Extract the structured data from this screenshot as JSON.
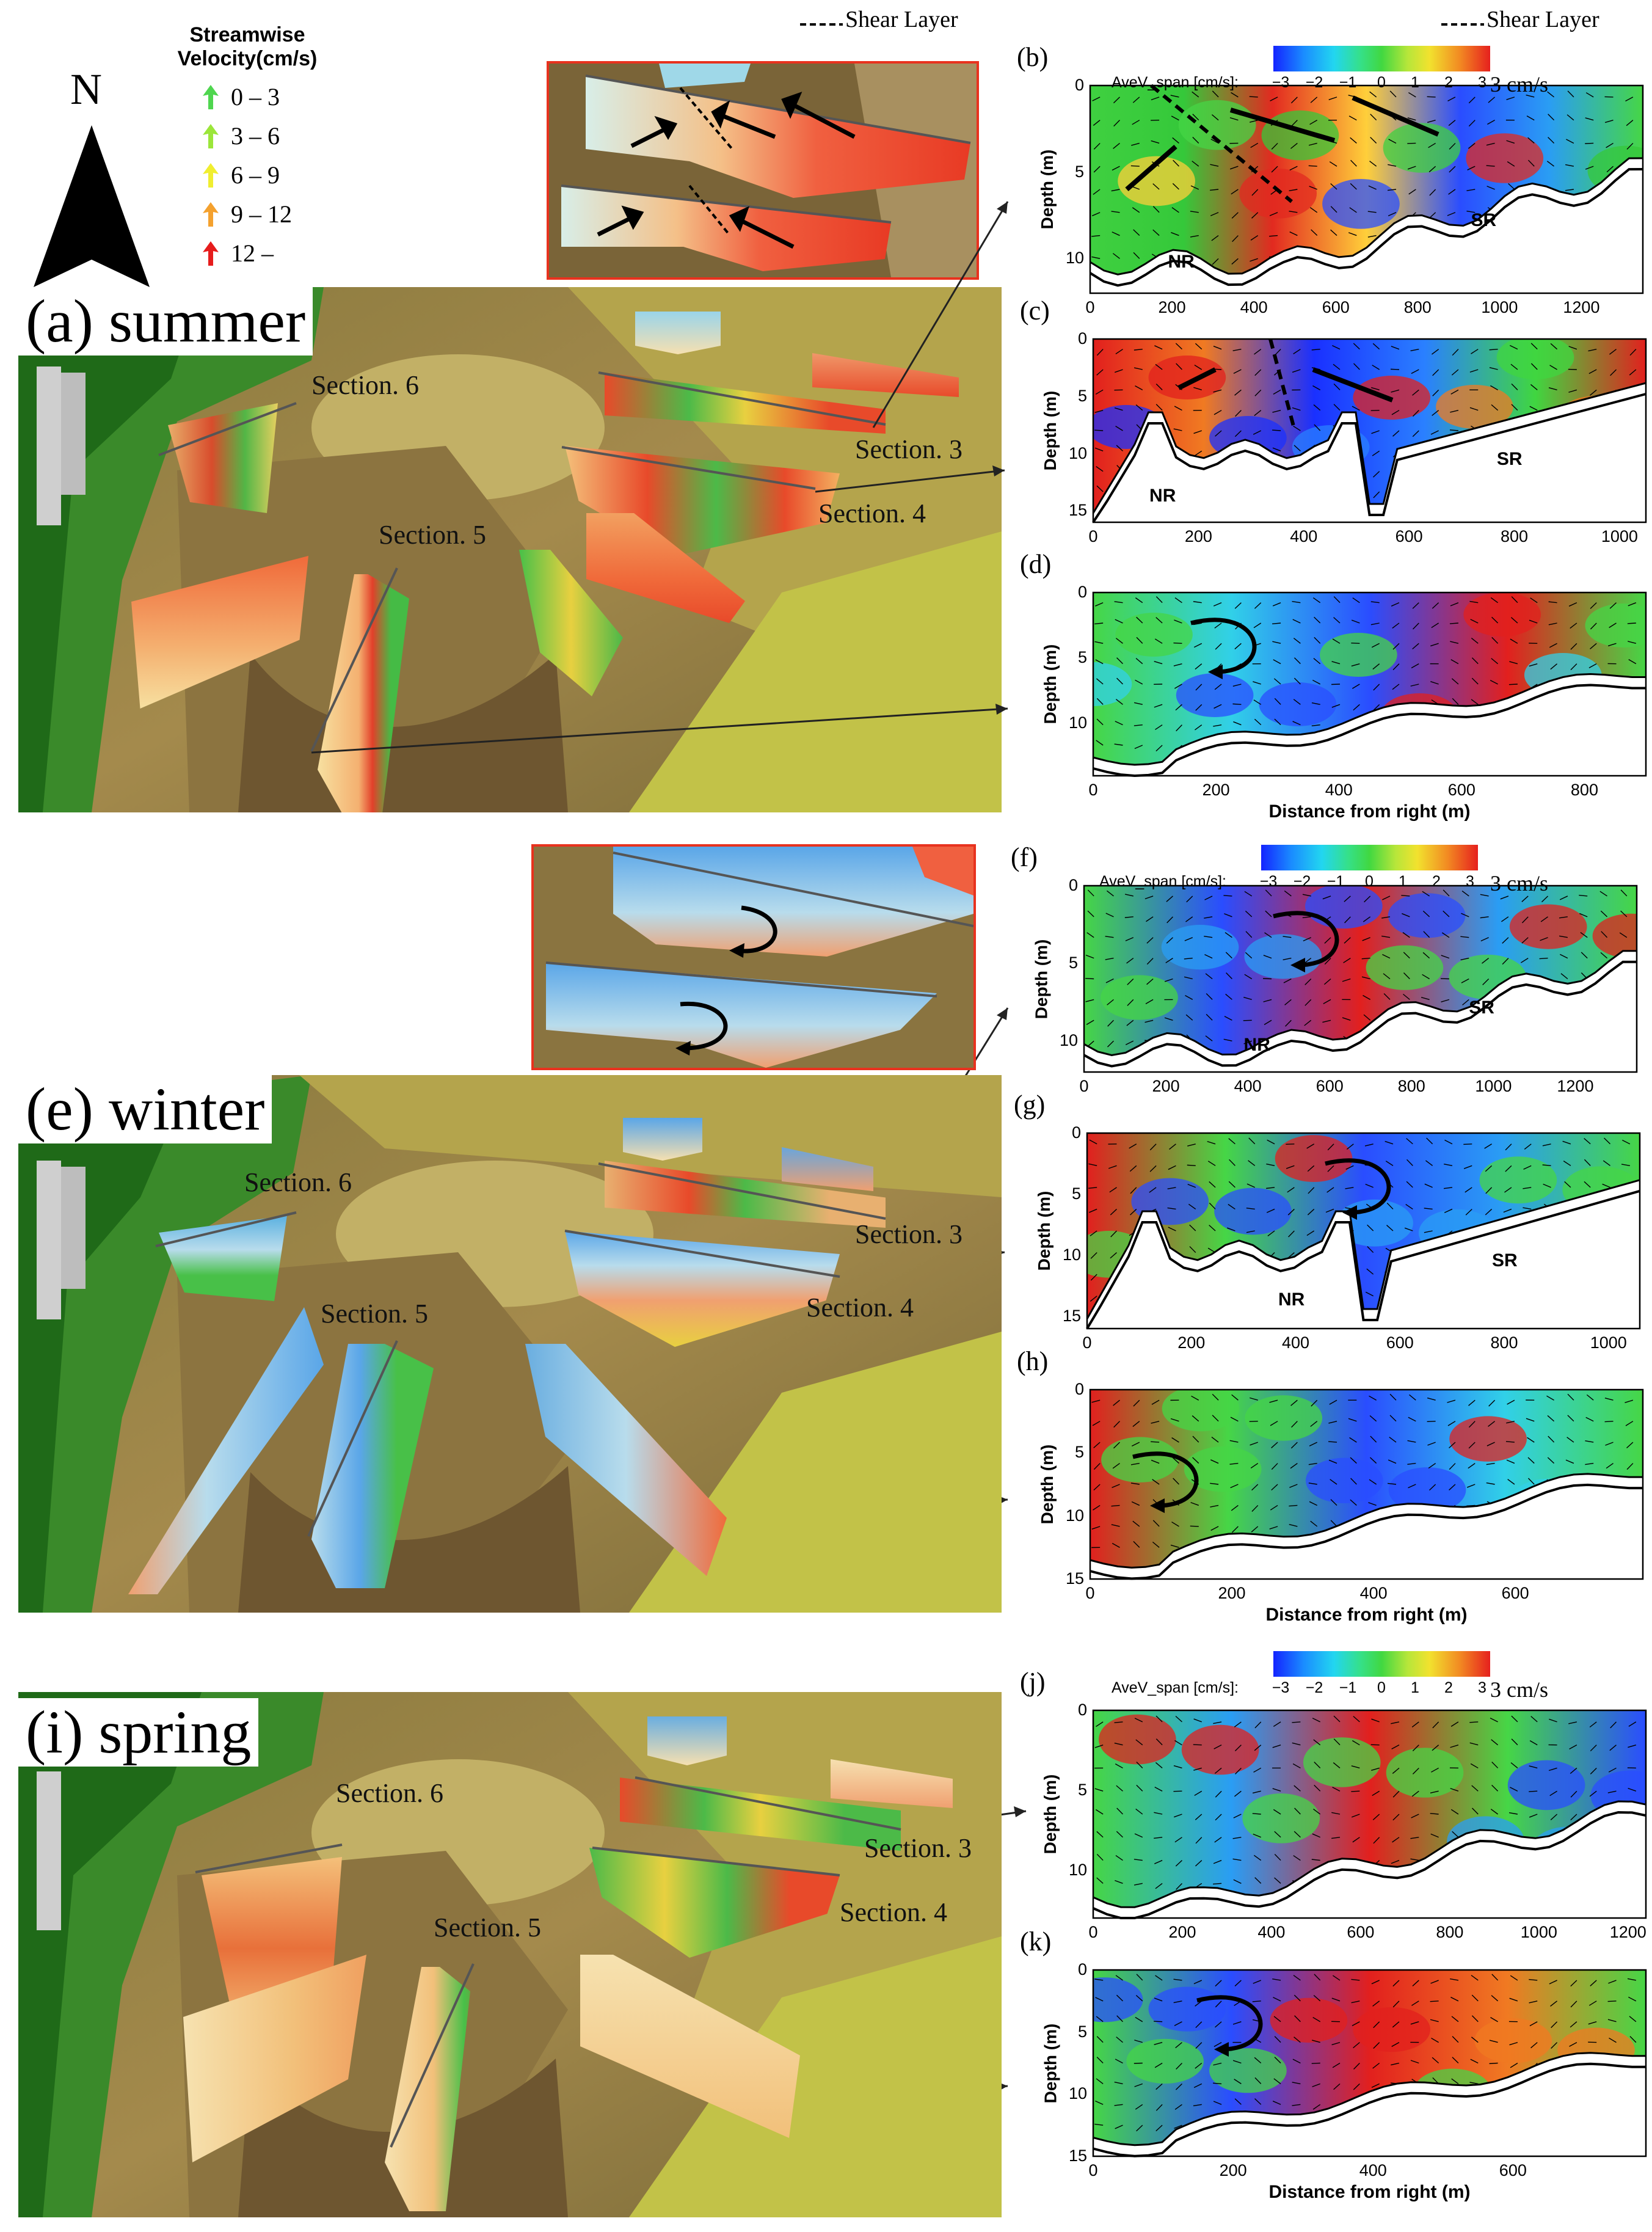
{
  "legend": {
    "title_line1": "Streamwise",
    "title_line2": "Velocity(cm/s)",
    "north": "N",
    "items": [
      {
        "label": "0 – 3",
        "color": "#4fd64f"
      },
      {
        "label": "3 – 6",
        "color": "#9be63a"
      },
      {
        "label": "6 – 9",
        "color": "#f0ee30"
      },
      {
        "label": "9 – 12",
        "color": "#f4a12e"
      },
      {
        "label": "12 –",
        "color": "#e61c1c"
      }
    ]
  },
  "shear_layer_label_left": "Shear Layer",
  "shear_layer_label_right": "Shear Layer",
  "colorbar": {
    "title": "AveV_span [cm/s]:",
    "ticks": [
      "−3",
      "−2",
      "−1",
      "0",
      "1",
      "2",
      "3"
    ],
    "scale_vector": "3 cm/s"
  },
  "seasons": {
    "summer": "(a) summer",
    "winter": "(e) winter",
    "spring": "(i) spring"
  },
  "sections": {
    "s3": "Section. 3",
    "s4": "Section. 4",
    "s5": "Section. 5",
    "s6": "Section. 6"
  },
  "panels": {
    "b": {
      "letter": "(b)",
      "ylabel": "Depth (m)",
      "yticks": [
        "0",
        "5",
        "10"
      ],
      "xticks": [
        "0",
        "200",
        "400",
        "600",
        "800",
        "1000",
        "1200"
      ],
      "labels": [
        "NR",
        "SR"
      ]
    },
    "c": {
      "letter": "(c)",
      "ylabel": "Depth (m)",
      "yticks": [
        "0",
        "5",
        "10",
        "15"
      ],
      "xticks": [
        "0",
        "200",
        "400",
        "600",
        "800",
        "1000"
      ],
      "labels": [
        "NR",
        "SR"
      ]
    },
    "d": {
      "letter": "(d)",
      "ylabel": "Depth (m)",
      "yticks": [
        "0",
        "5",
        "10"
      ],
      "xticks": [
        "0",
        "200",
        "400",
        "600",
        "800"
      ],
      "xlabel": "Distance from right (m)"
    },
    "f": {
      "letter": "(f)",
      "ylabel": "Depth (m)",
      "yticks": [
        "0",
        "5",
        "10"
      ],
      "xticks": [
        "0",
        "200",
        "400",
        "600",
        "800",
        "1000",
        "1200"
      ],
      "labels": [
        "NR",
        "SR"
      ]
    },
    "g": {
      "letter": "(g)",
      "ylabel": "Depth (m)",
      "yticks": [
        "0",
        "5",
        "10",
        "15"
      ],
      "xticks": [
        "0",
        "200",
        "400",
        "600",
        "800",
        "1000"
      ],
      "labels": [
        "NR",
        "SR"
      ]
    },
    "h": {
      "letter": "(h)",
      "ylabel": "Depth (m)",
      "yticks": [
        "0",
        "5",
        "10",
        "15"
      ],
      "xticks": [
        "0",
        "200",
        "400",
        "600"
      ],
      "xlabel": "Distance from right (m)"
    },
    "j": {
      "letter": "(j)",
      "ylabel": "Depth (m)",
      "yticks": [
        "0",
        "5",
        "10"
      ],
      "xticks": [
        "0",
        "200",
        "400",
        "600",
        "800",
        "1000",
        "1200"
      ]
    },
    "k": {
      "letter": "(k)",
      "ylabel": "Depth (m)",
      "yticks": [
        "0",
        "5",
        "10",
        "15"
      ],
      "xticks": [
        "0",
        "200",
        "400",
        "600"
      ],
      "xlabel": "Distance from right (m)"
    }
  }
}
